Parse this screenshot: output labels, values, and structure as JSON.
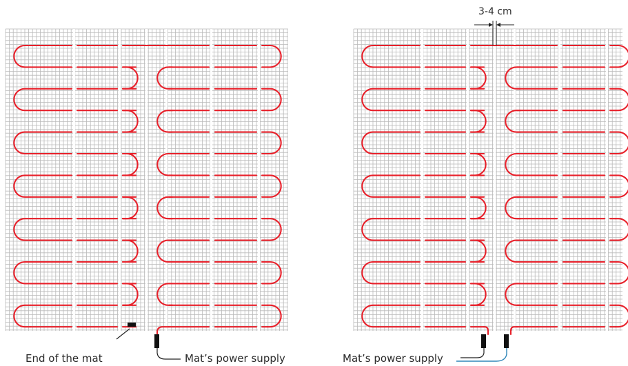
{
  "labels": {
    "end_of_mat": "End of the mat",
    "power_supply_left": "Mat’s power supply",
    "power_supply_right": "Mat’s power supply",
    "spacing": "3-4 cm"
  },
  "colors": {
    "cable": "#e8202a",
    "grid": "#b9b9b9",
    "connector": "#111111",
    "supply_wire_right": "#2f86b9"
  }
}
